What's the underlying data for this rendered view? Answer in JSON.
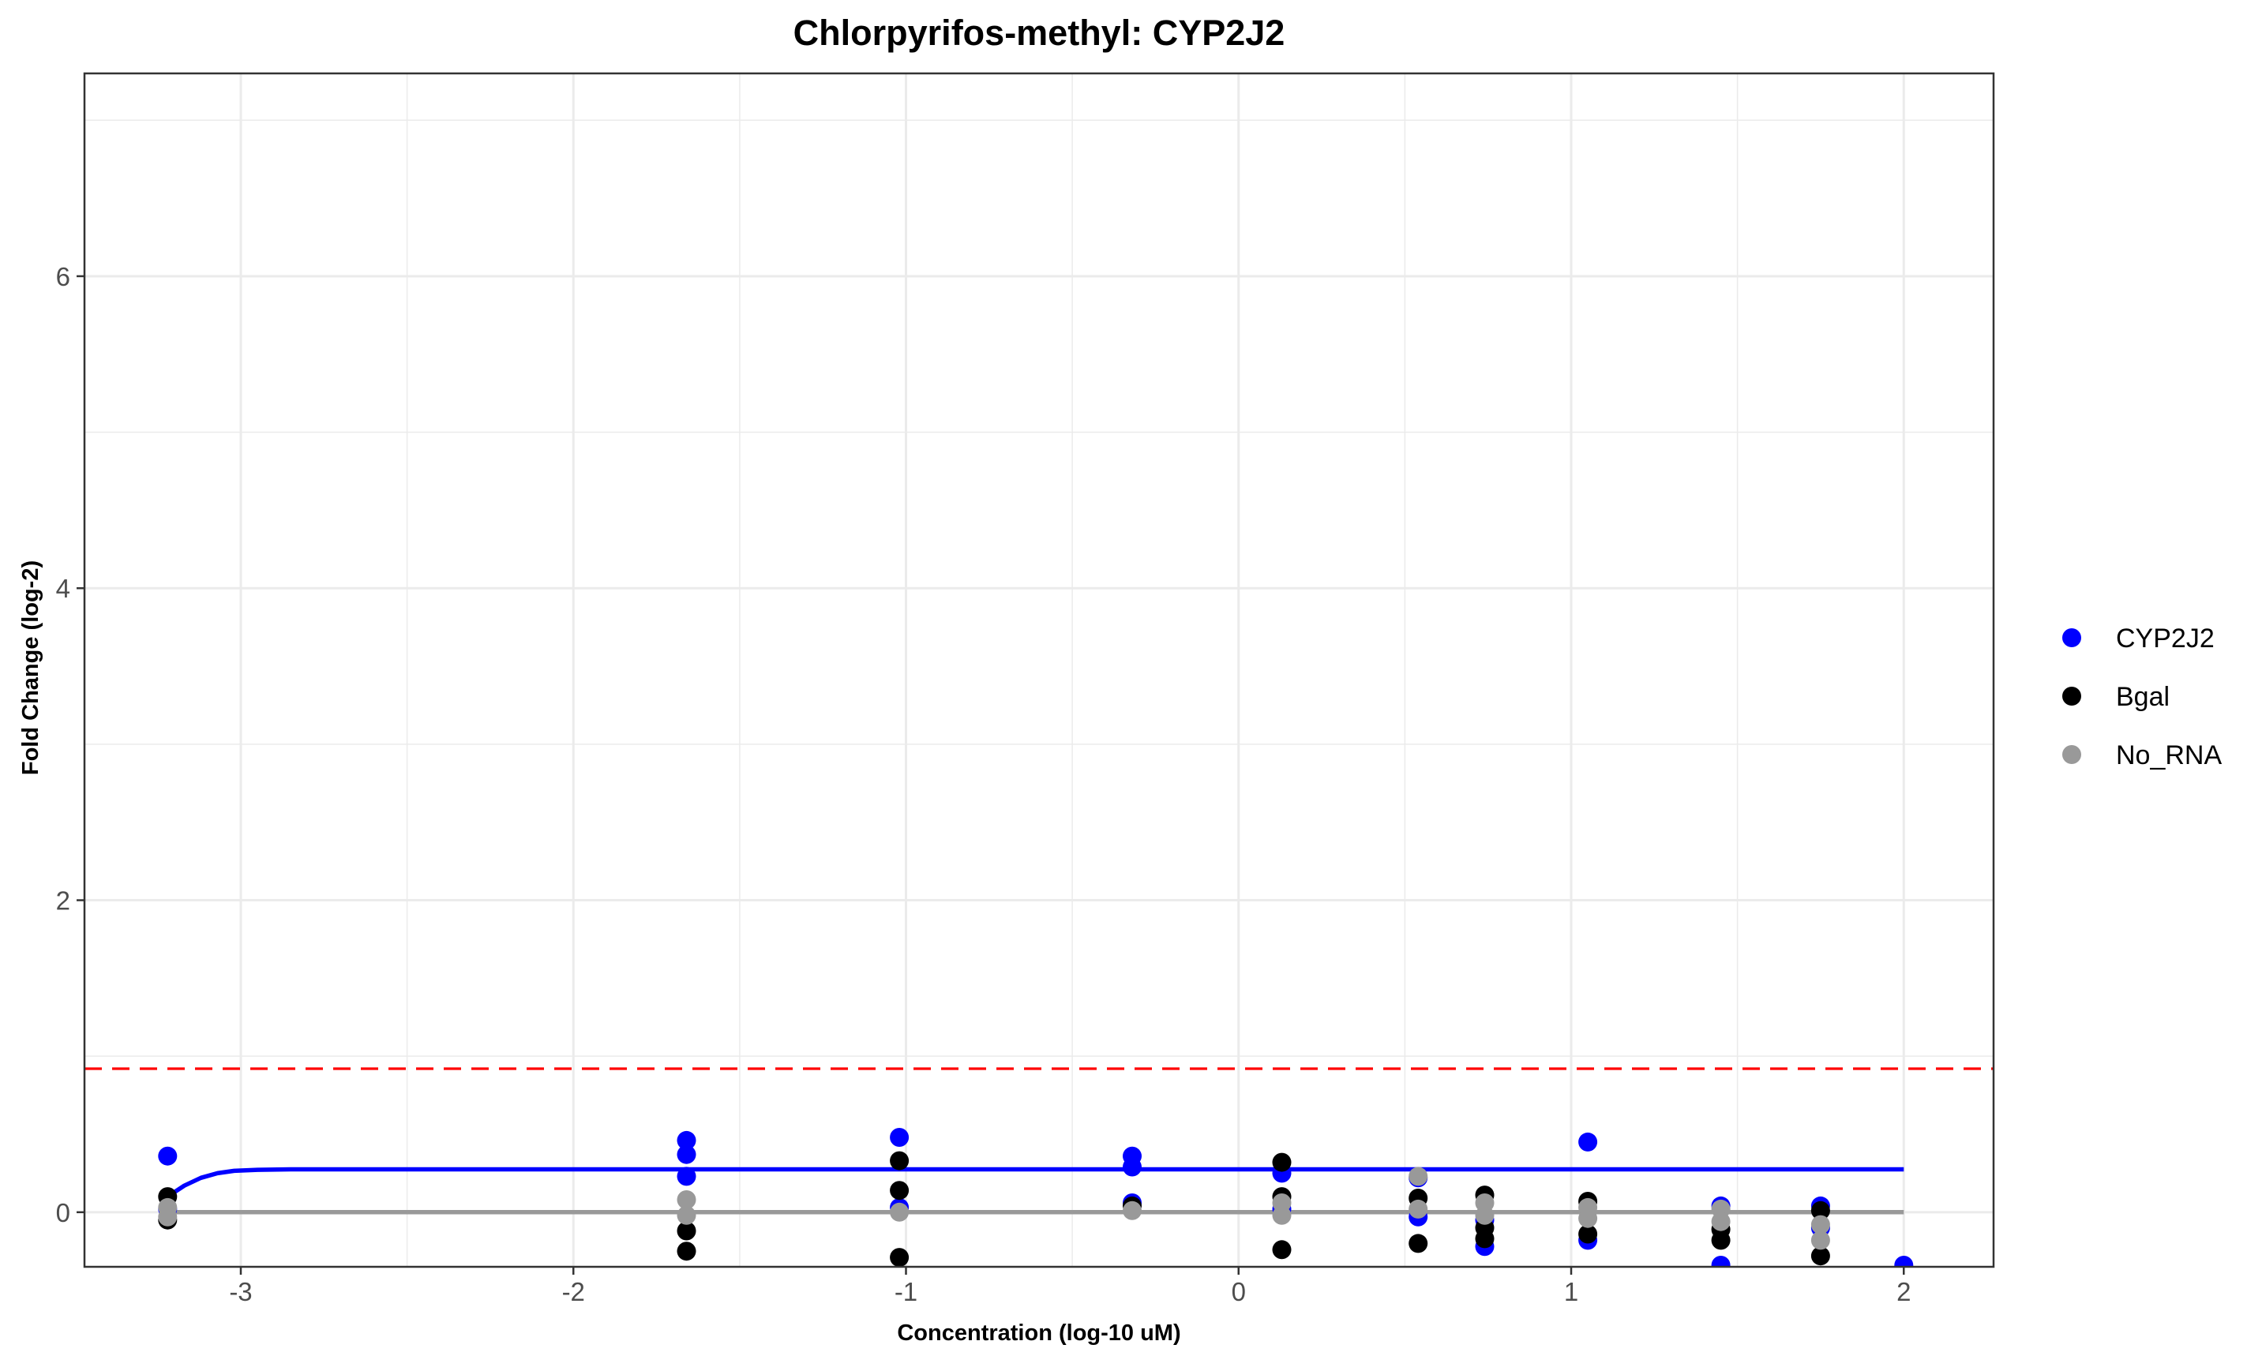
{
  "chart_data": {
    "type": "scatter",
    "title": "Chlorpyrifos-methyl: CYP2J2",
    "xlabel": "Concentration (log-10 uM)",
    "ylabel": "Fold Change (log-2)",
    "xlim": [
      -3.47,
      2.27
    ],
    "ylim": [
      -0.35,
      7.3
    ],
    "x_ticks": [
      -3,
      -2,
      -1,
      0,
      1,
      2
    ],
    "y_ticks": [
      0,
      2,
      4,
      6
    ],
    "grid": true,
    "legend_position": "right",
    "threshold": {
      "y": 0.92,
      "color": "#ff0000",
      "style": "dashed"
    },
    "series": [
      {
        "name": "CYP2J2",
        "color": "#0000ff",
        "points": [
          {
            "x": -3.22,
            "y": 0.36
          },
          {
            "x": -3.22,
            "y": 0.02
          },
          {
            "x": -1.66,
            "y": 0.46
          },
          {
            "x": -1.66,
            "y": 0.37
          },
          {
            "x": -1.66,
            "y": 0.23
          },
          {
            "x": -1.02,
            "y": 0.48
          },
          {
            "x": -1.02,
            "y": 0.03
          },
          {
            "x": -0.32,
            "y": 0.36
          },
          {
            "x": -0.32,
            "y": 0.29
          },
          {
            "x": -0.32,
            "y": 0.06
          },
          {
            "x": 0.13,
            "y": 0.25
          },
          {
            "x": 0.13,
            "y": 0.02
          },
          {
            "x": 0.54,
            "y": 0.22
          },
          {
            "x": 0.54,
            "y": -0.03
          },
          {
            "x": 0.74,
            "y": -0.22
          },
          {
            "x": 0.74,
            "y": -0.05
          },
          {
            "x": 1.05,
            "y": 0.45
          },
          {
            "x": 1.05,
            "y": -0.18
          },
          {
            "x": 1.45,
            "y": 0.04
          },
          {
            "x": 1.45,
            "y": -0.34
          },
          {
            "x": 1.75,
            "y": 0.04
          },
          {
            "x": 1.75,
            "y": -0.1
          },
          {
            "x": 2.0,
            "y": -0.34
          }
        ],
        "fit": {
          "x": [
            -3.22,
            -3.17,
            -3.12,
            -3.07,
            -3.02,
            -2.95,
            -2.85,
            -2.5,
            2.0
          ],
          "y": [
            0.1,
            0.17,
            0.22,
            0.25,
            0.265,
            0.272,
            0.275,
            0.275,
            0.275
          ]
        }
      },
      {
        "name": "Bgal",
        "color": "#000000",
        "points": [
          {
            "x": -3.22,
            "y": 0.1
          },
          {
            "x": -3.22,
            "y": -0.05
          },
          {
            "x": -1.66,
            "y": -0.12
          },
          {
            "x": -1.66,
            "y": -0.25
          },
          {
            "x": -1.02,
            "y": 0.33
          },
          {
            "x": -1.02,
            "y": 0.14
          },
          {
            "x": -1.02,
            "y": -0.29
          },
          {
            "x": -0.32,
            "y": 0.04
          },
          {
            "x": 0.13,
            "y": 0.32
          },
          {
            "x": 0.13,
            "y": 0.1
          },
          {
            "x": 0.13,
            "y": -0.24
          },
          {
            "x": 0.54,
            "y": 0.09
          },
          {
            "x": 0.54,
            "y": -0.2
          },
          {
            "x": 0.74,
            "y": 0.11
          },
          {
            "x": 0.74,
            "y": -0.1
          },
          {
            "x": 0.74,
            "y": -0.17
          },
          {
            "x": 1.05,
            "y": 0.07
          },
          {
            "x": 1.05,
            "y": -0.14
          },
          {
            "x": 1.45,
            "y": -0.11
          },
          {
            "x": 1.45,
            "y": -0.18
          },
          {
            "x": 1.75,
            "y": 0.01
          },
          {
            "x": 1.75,
            "y": -0.28
          }
        ],
        "fit": null
      },
      {
        "name": "No_RNA",
        "color": "#999999",
        "points": [
          {
            "x": -3.22,
            "y": 0.03
          },
          {
            "x": -3.22,
            "y": -0.03
          },
          {
            "x": -1.66,
            "y": 0.08
          },
          {
            "x": -1.66,
            "y": -0.02
          },
          {
            "x": -1.02,
            "y": 0.0
          },
          {
            "x": -0.32,
            "y": 0.01
          },
          {
            "x": 0.13,
            "y": 0.06
          },
          {
            "x": 0.13,
            "y": -0.02
          },
          {
            "x": 0.54,
            "y": 0.23
          },
          {
            "x": 0.54,
            "y": 0.02
          },
          {
            "x": 0.74,
            "y": 0.06
          },
          {
            "x": 0.74,
            "y": -0.02
          },
          {
            "x": 1.05,
            "y": 0.03
          },
          {
            "x": 1.05,
            "y": -0.04
          },
          {
            "x": 1.45,
            "y": 0.02
          },
          {
            "x": 1.45,
            "y": -0.06
          },
          {
            "x": 1.75,
            "y": -0.08
          },
          {
            "x": 1.75,
            "y": -0.18
          }
        ],
        "fit": {
          "x": [
            -3.22,
            2.0
          ],
          "y": [
            0.0,
            0.0
          ]
        }
      }
    ]
  }
}
